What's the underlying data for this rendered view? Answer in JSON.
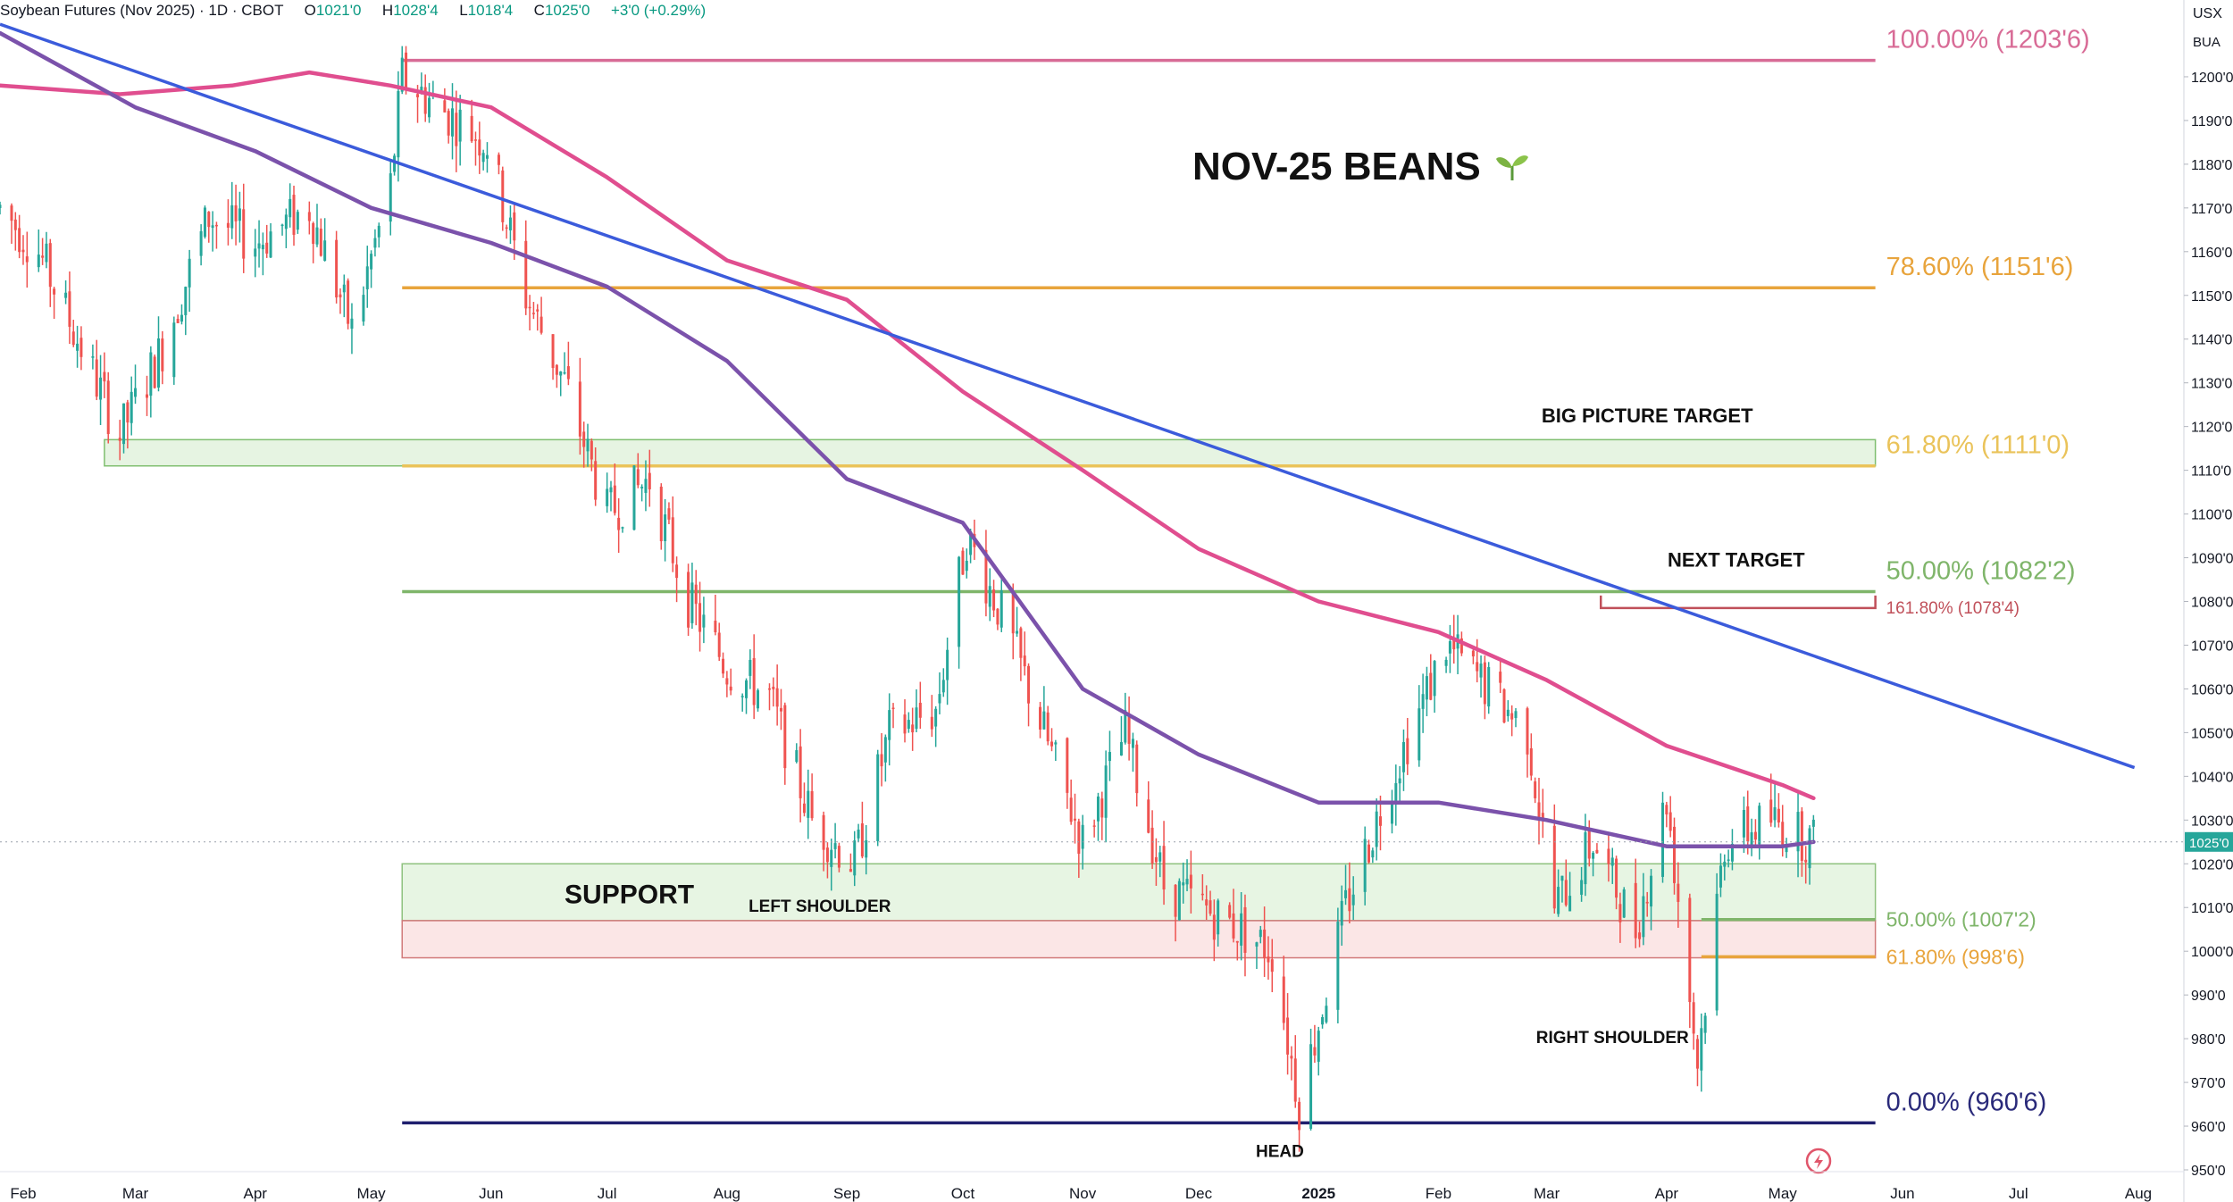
{
  "header": {
    "symbol": "Soybean Futures (Nov 2025)",
    "interval": "1D",
    "exchange": "CBOT",
    "open_label": "O",
    "open": "1021'0",
    "high_label": "H",
    "high": "1028'4",
    "low_label": "L",
    "low": "1018'4",
    "close_label": "C",
    "close": "1025'0",
    "change": "+3'0 (+0.29%)"
  },
  "currency": {
    "unit": "USX",
    "sub": "BUA"
  },
  "chart_data": {
    "type": "candlestick",
    "title": "NOV-25 BEANS",
    "title_icon": "seedling-icon",
    "x_start": "2024-01-26",
    "x_end": "2025-08-01",
    "ylim": [
      950,
      1210
    ],
    "y_ticks": [
      "1200'0",
      "1190'0",
      "1180'0",
      "1170'0",
      "1160'0",
      "1150'0",
      "1140'0",
      "1130'0",
      "1120'0",
      "1110'0",
      "1100'0",
      "1090'0",
      "1080'0",
      "1070'0",
      "1060'0",
      "1050'0",
      "1040'0",
      "1030'0",
      "1020'0",
      "1010'0",
      "1000'0",
      "990'0",
      "980'0",
      "970'0",
      "960'0",
      "950'0"
    ],
    "x_ticks": [
      {
        "date": "2024-02-01",
        "label": "Feb"
      },
      {
        "date": "2024-03-01",
        "label": "Mar"
      },
      {
        "date": "2024-04-01",
        "label": "Apr"
      },
      {
        "date": "2024-05-01",
        "label": "May"
      },
      {
        "date": "2024-06-01",
        "label": "Jun"
      },
      {
        "date": "2024-07-01",
        "label": "Jul"
      },
      {
        "date": "2024-08-01",
        "label": "Aug"
      },
      {
        "date": "2024-09-01",
        "label": "Sep"
      },
      {
        "date": "2024-10-01",
        "label": "Oct"
      },
      {
        "date": "2024-11-01",
        "label": "Nov"
      },
      {
        "date": "2024-12-01",
        "label": "Dec"
      },
      {
        "date": "2025-01-01",
        "label": "2025",
        "bold": true
      },
      {
        "date": "2025-02-01",
        "label": "Feb"
      },
      {
        "date": "2025-03-01",
        "label": "Mar"
      },
      {
        "date": "2025-04-01",
        "label": "Apr"
      },
      {
        "date": "2025-05-01",
        "label": "May"
      },
      {
        "date": "2025-06-01",
        "label": "Jun"
      },
      {
        "date": "2025-07-01",
        "label": "Jul"
      },
      {
        "date": "2025-08-01",
        "label": "Aug"
      }
    ],
    "last_price": {
      "value": 1025,
      "label": "1025'0"
    },
    "price_path": [
      [
        "2024-01-26",
        1170
      ],
      [
        "2024-02-05",
        1160
      ],
      [
        "2024-02-15",
        1140
      ],
      [
        "2024-02-26",
        1118
      ],
      [
        "2024-03-08",
        1138
      ],
      [
        "2024-03-20",
        1168
      ],
      [
        "2024-04-01",
        1162
      ],
      [
        "2024-04-15",
        1170
      ],
      [
        "2024-04-26",
        1142
      ],
      [
        "2024-05-06",
        1175
      ],
      [
        "2024-05-09",
        1200
      ],
      [
        "2024-05-20",
        1192
      ],
      [
        "2024-05-31",
        1185
      ],
      [
        "2024-06-10",
        1150
      ],
      [
        "2024-06-20",
        1130
      ],
      [
        "2024-07-01",
        1100
      ],
      [
        "2024-07-12",
        1108
      ],
      [
        "2024-07-22",
        1080
      ],
      [
        "2024-08-01",
        1065
      ],
      [
        "2024-08-12",
        1058
      ],
      [
        "2024-08-23",
        1030
      ],
      [
        "2024-09-03",
        1020
      ],
      [
        "2024-09-12",
        1050
      ],
      [
        "2024-09-24",
        1055
      ],
      [
        "2024-10-02",
        1095
      ],
      [
        "2024-10-12",
        1075
      ],
      [
        "2024-10-22",
        1050
      ],
      [
        "2024-11-01",
        1025
      ],
      [
        "2024-11-12",
        1050
      ],
      [
        "2024-11-22",
        1015
      ],
      [
        "2024-12-02",
        1010
      ],
      [
        "2024-12-12",
        1005
      ],
      [
        "2024-12-20",
        1000
      ],
      [
        "2024-12-27",
        965
      ],
      [
        "2025-01-08",
        1010
      ],
      [
        "2025-01-20",
        1040
      ],
      [
        "2025-02-03",
        1070
      ],
      [
        "2025-02-14",
        1060
      ],
      [
        "2025-02-24",
        1050
      ],
      [
        "2025-03-03",
        1010
      ],
      [
        "2025-03-13",
        1025
      ],
      [
        "2025-03-24",
        1005
      ],
      [
        "2025-04-01",
        1035
      ],
      [
        "2025-04-09",
        975
      ],
      [
        "2025-04-16",
        1025
      ],
      [
        "2025-04-28",
        1030
      ],
      [
        "2025-05-09",
        1025
      ]
    ],
    "moving_averages": [
      {
        "color": "#e04e8f",
        "points": [
          [
            "2024-01-26",
            1198
          ],
          [
            "2024-02-26",
            1196
          ],
          [
            "2024-03-26",
            1198
          ],
          [
            "2024-04-15",
            1201
          ],
          [
            "2024-05-06",
            1198
          ],
          [
            "2024-06-01",
            1193
          ],
          [
            "2024-07-01",
            1177
          ],
          [
            "2024-08-01",
            1158
          ],
          [
            "2024-09-01",
            1149
          ],
          [
            "2024-10-01",
            1128
          ],
          [
            "2024-11-01",
            1110
          ],
          [
            "2024-12-01",
            1092
          ],
          [
            "2025-01-01",
            1080
          ],
          [
            "2025-02-01",
            1073
          ],
          [
            "2025-03-01",
            1062
          ],
          [
            "2025-04-01",
            1047
          ],
          [
            "2025-05-01",
            1038
          ],
          [
            "2025-05-09",
            1035
          ]
        ]
      },
      {
        "color": "#7b52ab",
        "points": [
          [
            "2024-01-26",
            1210
          ],
          [
            "2024-03-01",
            1193
          ],
          [
            "2024-04-01",
            1183
          ],
          [
            "2024-05-01",
            1170
          ],
          [
            "2024-06-01",
            1162
          ],
          [
            "2024-07-01",
            1152
          ],
          [
            "2024-08-01",
            1135
          ],
          [
            "2024-09-01",
            1108
          ],
          [
            "2024-10-01",
            1098
          ],
          [
            "2024-11-01",
            1060
          ],
          [
            "2024-12-01",
            1045
          ],
          [
            "2025-01-01",
            1034
          ],
          [
            "2025-02-01",
            1034
          ],
          [
            "2025-03-01",
            1030
          ],
          [
            "2025-04-01",
            1024
          ],
          [
            "2025-05-01",
            1024
          ],
          [
            "2025-05-09",
            1025
          ]
        ]
      }
    ],
    "trendline": {
      "color": "#3b5bdb",
      "from": [
        "2024-01-26",
        1212
      ],
      "to": [
        "2025-07-31",
        1042
      ]
    },
    "fib_levels": [
      {
        "label": "100.00% (1203'6)",
        "value": 1203.75,
        "color": "#d86b96",
        "text_color": "#d86b96",
        "x_start": "2024-05-09",
        "x_end": "2025-05-25"
      },
      {
        "label": "78.60% (1151'6)",
        "value": 1151.75,
        "color": "#e8a43c",
        "text_color": "#e8a43c",
        "x_start": "2024-05-09",
        "x_end": "2025-05-25"
      },
      {
        "label": "61.80% (1111'0)",
        "value": 1111,
        "color": "#eac35a",
        "text_color": "#eac35a",
        "x_start": "2024-05-09",
        "x_end": "2025-05-25"
      },
      {
        "label": "50.00% (1082'2)",
        "value": 1082.25,
        "color": "#7fb56a",
        "text_color": "#7fb56a",
        "x_start": "2024-05-09",
        "x_end": "2025-05-25"
      },
      {
        "label": "0.00% (960'6)",
        "value": 960.75,
        "color": "#1f1f6e",
        "text_color": "#2a2a7a",
        "x_start": "2024-05-09",
        "x_end": "2025-05-25"
      }
    ],
    "small_fib_levels": [
      {
        "label": "50.00% (1007'2)",
        "value": 1007.25,
        "color": "#7fb56a",
        "x_start": "2025-04-10",
        "x_end": "2025-05-25"
      },
      {
        "label": "61.80% (998'6)",
        "value": 998.75,
        "color": "#e8a43c",
        "x_start": "2025-04-10",
        "x_end": "2025-05-25"
      }
    ],
    "extension": {
      "label": "161.80% (1078'4)",
      "value": 1078.5,
      "x_start": "2025-03-15",
      "x_end": "2025-05-25",
      "color": "#c0505a"
    },
    "zones": [
      {
        "label": "big-picture-target-zone",
        "y_low": 1111,
        "y_high": 1117,
        "x_start": "2024-02-22",
        "x_end": "2025-05-25",
        "fill": "#e6f4e2",
        "stroke": "#7fbf6f"
      },
      {
        "label": "support-zone",
        "y_low": 1007,
        "y_high": 1020,
        "x_start": "2024-05-09",
        "x_end": "2025-05-25",
        "fill": "#e7f5e3",
        "stroke": "#8fc27e"
      },
      {
        "label": "support-zone-low",
        "y_low": 998.5,
        "y_high": 1007,
        "x_start": "2024-05-09",
        "x_end": "2025-05-25",
        "fill": "#fbe6e6",
        "stroke": "#d17a7a"
      }
    ],
    "annotations": [
      {
        "text": "BIG PICTURE TARGET",
        "date": "2025-03-27",
        "value": 1121,
        "size": 22,
        "weight": "bold",
        "color": "#111111"
      },
      {
        "text": "NEXT TARGET",
        "date": "2025-04-19",
        "value": 1088,
        "size": 22,
        "weight": "bold",
        "color": "#111111"
      },
      {
        "text": "SUPPORT",
        "date": "2024-06-20",
        "value": 1011,
        "size": 30,
        "weight": "bold",
        "color": "#111111"
      },
      {
        "text": "LEFT SHOULDER",
        "date": "2024-08-25",
        "value": 1009,
        "size": 19,
        "weight": "bold",
        "color": "#111111"
      },
      {
        "text": "RIGHT SHOULDER",
        "date": "2025-03-18",
        "value": 979,
        "size": 19,
        "weight": "bold",
        "color": "#111111"
      },
      {
        "text": "HEAD",
        "date": "2024-12-22",
        "value": 953,
        "size": 19,
        "weight": "bold",
        "color": "#111111"
      }
    ],
    "colors": {
      "up": "#26a69a",
      "down": "#ef5350",
      "grid": "#f0f3fa",
      "axis_text": "#131722"
    }
  }
}
